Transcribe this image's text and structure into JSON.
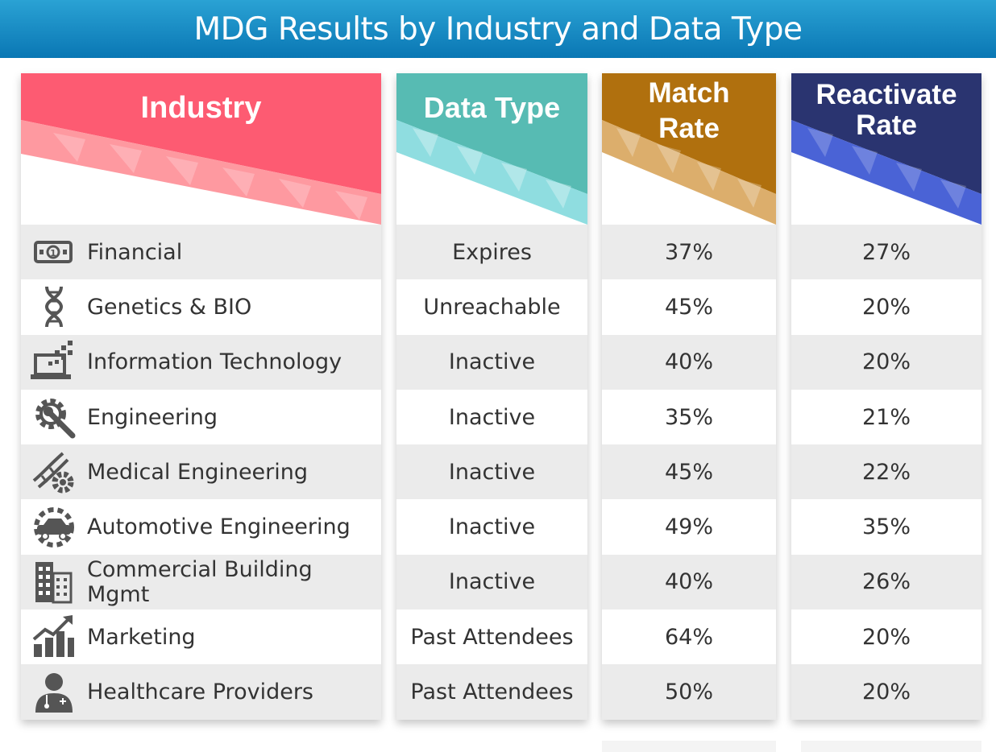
{
  "title": "MDG Results by Industry and Data Type",
  "colors": {
    "title_bar": "#1a8fc7",
    "industry": "#fd5b72",
    "data_type": "#57bbb3",
    "match_rate": "#b0700e",
    "reactivate_rate": "#2a3470",
    "row_alt": "#ebebeb",
    "text": "#333333"
  },
  "chart_data": {
    "type": "table",
    "title": "MDG Results by Industry and Data Type",
    "columns": [
      "Industry",
      "Data Type",
      "Match Rate",
      "Reactivate Rate"
    ],
    "header_lines": {
      "industry": [
        "Industry"
      ],
      "data_type": [
        "Data Type"
      ],
      "match_rate": [
        "Match",
        "Rate"
      ],
      "reactivate_rate": [
        "Reactivate",
        "Rate"
      ]
    },
    "rows": [
      {
        "industry": "Financial",
        "icon": "money-bill-icon",
        "data_type": "Expires",
        "match_rate": "37%",
        "reactivate_rate": "27%"
      },
      {
        "industry": "Genetics & BIO",
        "icon": "dna-icon",
        "data_type": "Unreachable",
        "match_rate": "45%",
        "reactivate_rate": "20%"
      },
      {
        "industry": "Information Technology",
        "icon": "laptop-pixels-icon",
        "data_type": "Inactive",
        "match_rate": "40%",
        "reactivate_rate": "20%"
      },
      {
        "industry": "Engineering",
        "icon": "gear-wrench-icon",
        "data_type": "Inactive",
        "match_rate": "35%",
        "reactivate_rate": "21%"
      },
      {
        "industry": "Medical Engineering",
        "icon": "dna-gear-icon",
        "data_type": "Inactive",
        "match_rate": "45%",
        "reactivate_rate": "22%"
      },
      {
        "industry": "Automotive Engineering",
        "icon": "car-gear-icon",
        "data_type": "Inactive",
        "match_rate": "49%",
        "reactivate_rate": "35%"
      },
      {
        "industry": "Commercial Building Mgmt",
        "icon": "building-icon",
        "data_type": "Inactive",
        "match_rate": "40%",
        "reactivate_rate": "26%"
      },
      {
        "industry": "Marketing",
        "icon": "growth-chart-icon",
        "data_type": "Past Attendees",
        "match_rate": "64%",
        "reactivate_rate": "20%"
      },
      {
        "industry": "Healthcare Providers",
        "icon": "doctor-icon",
        "data_type": "Past Attendees",
        "match_rate": "50%",
        "reactivate_rate": "20%"
      }
    ]
  }
}
